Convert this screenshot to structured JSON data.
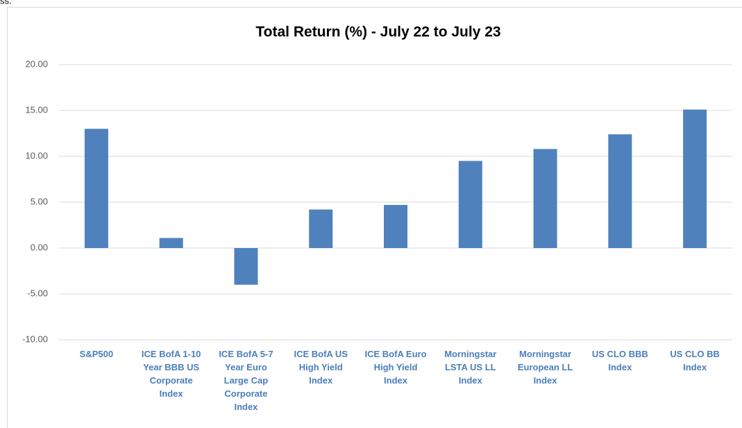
{
  "fragment": "ss.",
  "chart_data": {
    "type": "bar",
    "title": "Total Return (%) - July 22 to July 23",
    "categories": [
      "S&P500",
      "ICE BofA 1-10 Year BBB US Corporate Index",
      "ICE BofA 5-7 Year Euro Large Cap Corporate Index",
      "ICE BofA US High Yield Index",
      "ICE BofA Euro High Yield Index",
      "Morningstar LSTA US LL Index",
      "Morningstar European  LL Index",
      "US CLO BBB Index",
      "US CLO BB Index"
    ],
    "values": [
      13.0,
      1.1,
      -4.0,
      4.2,
      4.7,
      9.5,
      10.8,
      12.4,
      15.1
    ],
    "color": "#4f81bd",
    "ylim": [
      -10,
      20
    ],
    "yticks": [
      {
        "value": -10,
        "label": "-10.00"
      },
      {
        "value": -5,
        "label": "-5.00"
      },
      {
        "value": 0,
        "label": "0.00"
      },
      {
        "value": 5,
        "label": "5.00"
      },
      {
        "value": 10,
        "label": "10.00"
      },
      {
        "value": 15,
        "label": "15.00"
      },
      {
        "value": 20,
        "label": "20.00"
      }
    ],
    "grid": true
  }
}
